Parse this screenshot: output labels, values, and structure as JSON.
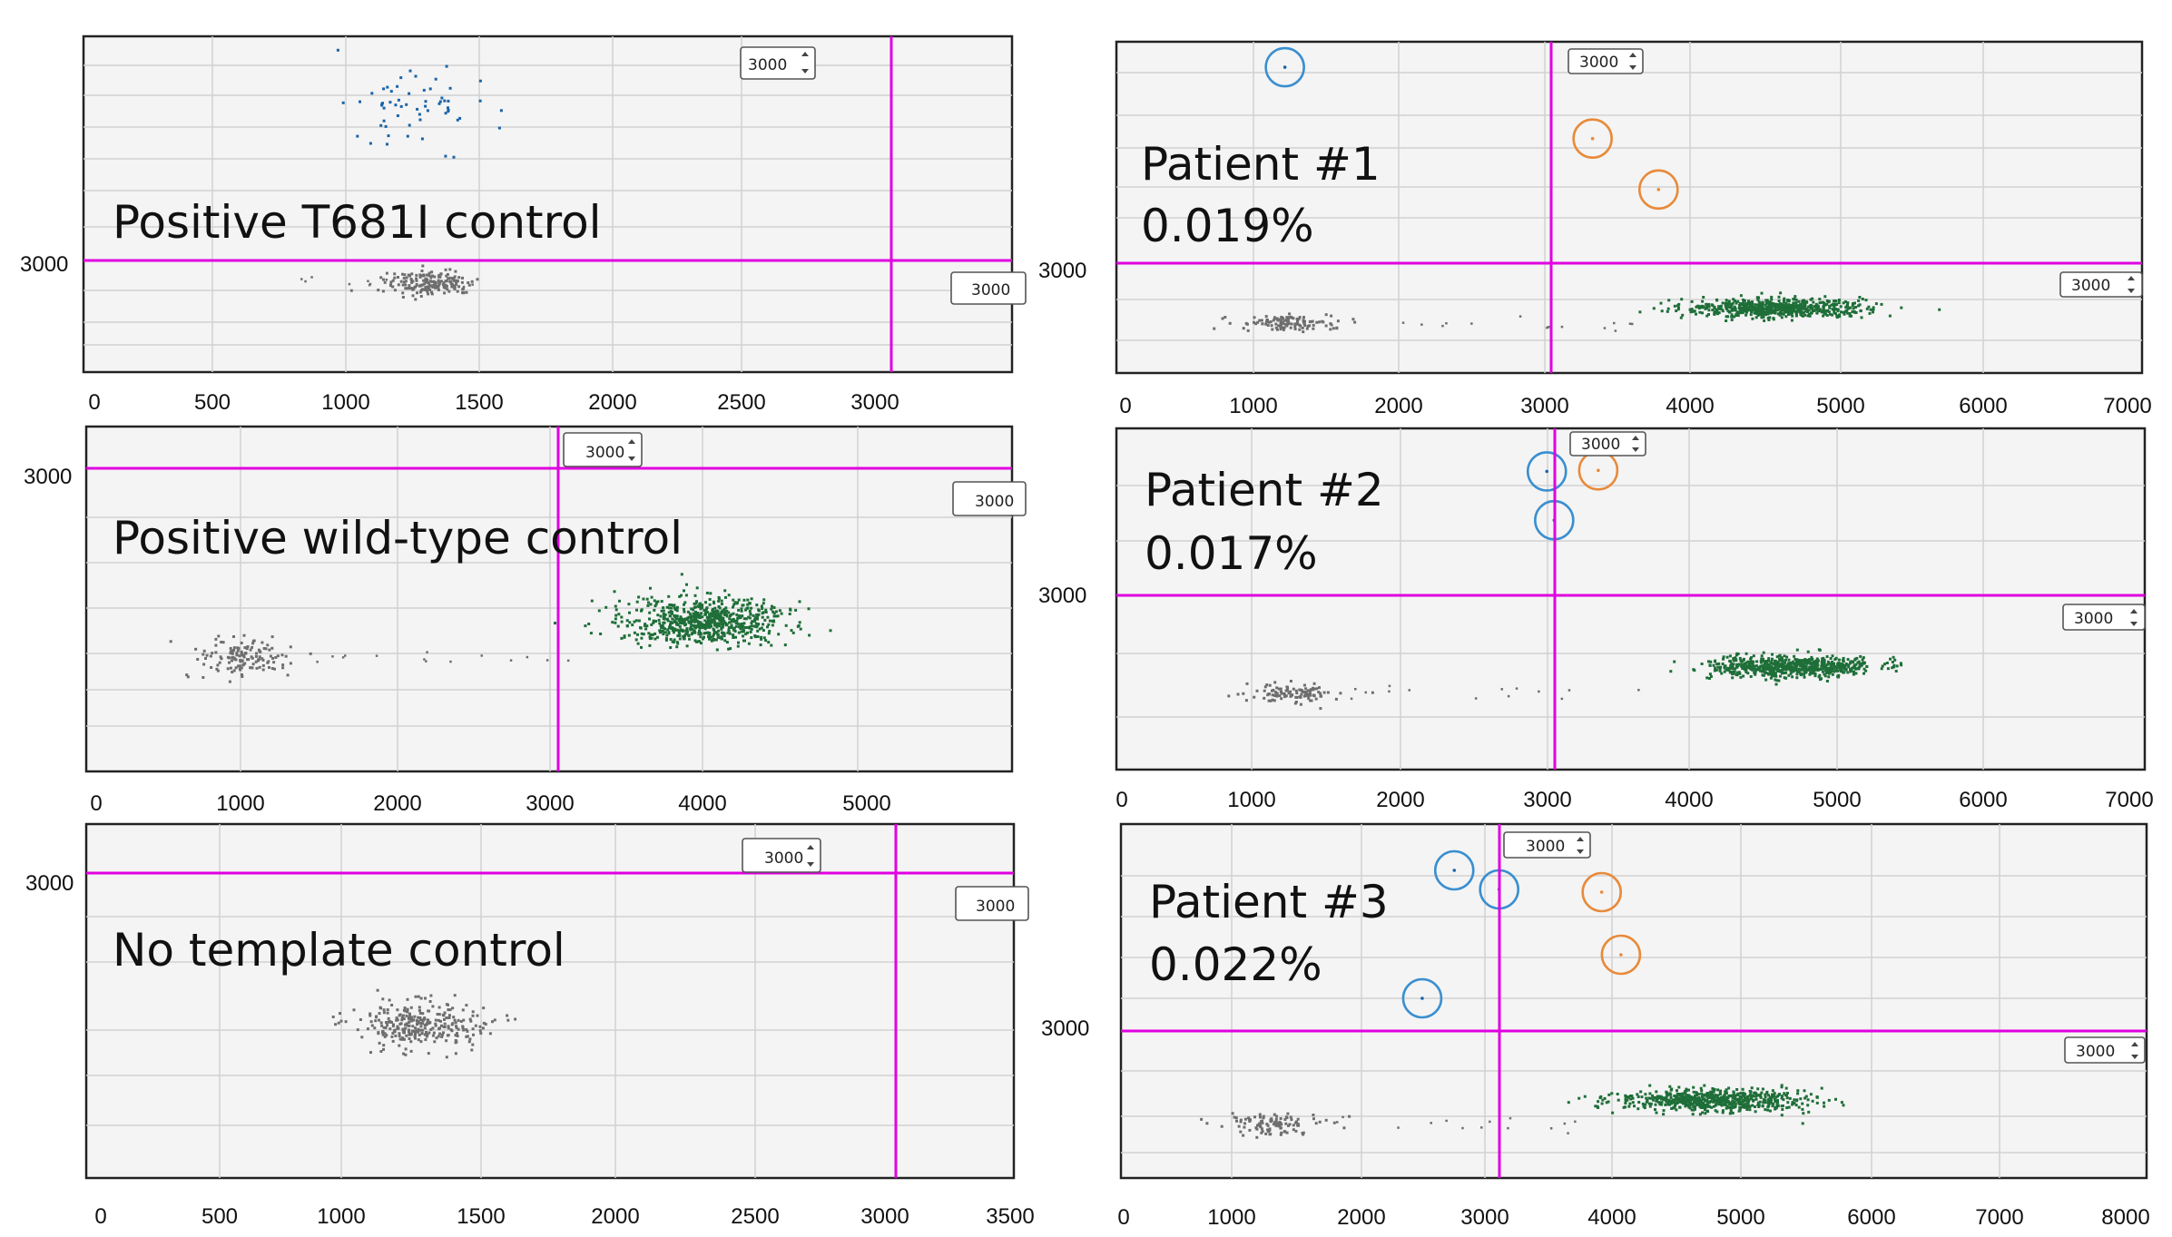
{
  "figure": {
    "threshold_box_label": "3000",
    "colors": {
      "negative_droplets": "#6e6e6e",
      "wildtype_droplets": "#1e6e38",
      "mutant_droplets": "#1a64a8",
      "threshold_line": "#e000e0",
      "mutant_ring": "#3a8fd0",
      "wildtype_ring": "#e88a3a"
    }
  },
  "chart_data": [
    {
      "id": "p1",
      "type": "scatter",
      "title": "Positive T681I control",
      "percentage": "",
      "x_ticks": [
        "0",
        "500",
        "1000",
        "1500",
        "2000",
        "2500",
        "3000"
      ],
      "y_label": "3000",
      "xlim": [
        0,
        3500
      ],
      "ylim": [
        0,
        6500
      ],
      "x_threshold": 3000,
      "y_threshold": 3000,
      "clusters": [
        {
          "name": "double-negative",
          "x": 1300,
          "y": 1750,
          "count": 180
        },
        {
          "name": "T681I mutant",
          "x": 1250,
          "y": 5200,
          "count": 60
        }
      ],
      "circled_mutant": [],
      "circled_wildtype": []
    },
    {
      "id": "p2",
      "type": "scatter",
      "title": "Positive wild-type control",
      "percentage": "",
      "x_ticks": [
        "0",
        "1000",
        "2000",
        "3000",
        "4000",
        "5000"
      ],
      "y_label": "3000",
      "xlim": [
        0,
        6000
      ],
      "ylim": [
        0,
        3300
      ],
      "x_threshold": 3000,
      "y_threshold": 3000,
      "clusters": [
        {
          "name": "double-negative",
          "x": 1000,
          "y": 1100,
          "count": 140
        },
        {
          "name": "wild-type",
          "x": 4000,
          "y": 1450,
          "count": 700
        }
      ],
      "circled_mutant": [],
      "circled_wildtype": []
    },
    {
      "id": "p3",
      "type": "scatter",
      "title": "No template control",
      "percentage": "",
      "x_ticks": [
        "0",
        "500",
        "1000",
        "1500",
        "2000",
        "2500",
        "3000",
        "3500"
      ],
      "y_label": "3000",
      "xlim": [
        0,
        3500
      ],
      "ylim": [
        0,
        3300
      ],
      "x_threshold": 3000,
      "y_threshold": 3000,
      "clusters": [
        {
          "name": "double-negative",
          "x": 1250,
          "y": 1450,
          "count": 300
        }
      ],
      "circled_mutant": [],
      "circled_wildtype": []
    },
    {
      "id": "p4",
      "type": "scatter",
      "title": "Patient #1",
      "percentage": "0.019%",
      "x_ticks": [
        "0",
        "1000",
        "2000",
        "3000",
        "4000",
        "5000",
        "6000",
        "7000"
      ],
      "y_label": "3000",
      "xlim": [
        0,
        7000
      ],
      "ylim": [
        0,
        6500
      ],
      "x_threshold": 3000,
      "y_threshold": 3000,
      "clusters": [
        {
          "name": "double-negative",
          "x": 1150,
          "y": 1000,
          "count": 120
        },
        {
          "name": "wild-type",
          "x": 4500,
          "y": 1300,
          "count": 650
        }
      ],
      "circled_mutant": [
        [
          1150,
          6000
        ]
      ],
      "circled_wildtype": [
        [
          3250,
          4600
        ],
        [
          3700,
          3600
        ]
      ]
    },
    {
      "id": "p5",
      "type": "scatter",
      "title": "Patient #2",
      "percentage": "0.017%",
      "x_ticks": [
        "0",
        "1000",
        "2000",
        "3000",
        "4000",
        "5000",
        "6000",
        "7000"
      ],
      "y_label": "3000",
      "xlim": [
        0,
        7000
      ],
      "ylim": [
        0,
        6500
      ],
      "x_threshold": 3000,
      "y_threshold": 3000,
      "clusters": [
        {
          "name": "double-negative",
          "x": 1200,
          "y": 1500,
          "count": 110
        },
        {
          "name": "wild-type",
          "x": 4600,
          "y": 1990,
          "count": 650
        }
      ],
      "circled_mutant": [
        [
          2930,
          5680
        ],
        [
          2980,
          4750
        ]
      ],
      "circled_wildtype": [
        [
          3280,
          5700
        ]
      ]
    },
    {
      "id": "p6",
      "type": "scatter",
      "title": "Patient #3",
      "percentage": "0.022%",
      "x_ticks": [
        "0",
        "1000",
        "2000",
        "3000",
        "4000",
        "5000",
        "6000",
        "7000",
        "8000"
      ],
      "y_label": "3000",
      "xlim": [
        0,
        8000
      ],
      "ylim": [
        0,
        6500
      ],
      "x_threshold": 3000,
      "y_threshold": 3000,
      "clusters": [
        {
          "name": "double-negative",
          "x": 1150,
          "y": 1000,
          "count": 110
        },
        {
          "name": "wild-type",
          "x": 4600,
          "y": 1450,
          "count": 650
        }
      ],
      "circled_mutant": [
        [
          2600,
          5650
        ],
        [
          2950,
          5300
        ],
        [
          2350,
          3300
        ]
      ],
      "circled_wildtype": [
        [
          3750,
          5250
        ],
        [
          3900,
          4100
        ]
      ]
    }
  ]
}
